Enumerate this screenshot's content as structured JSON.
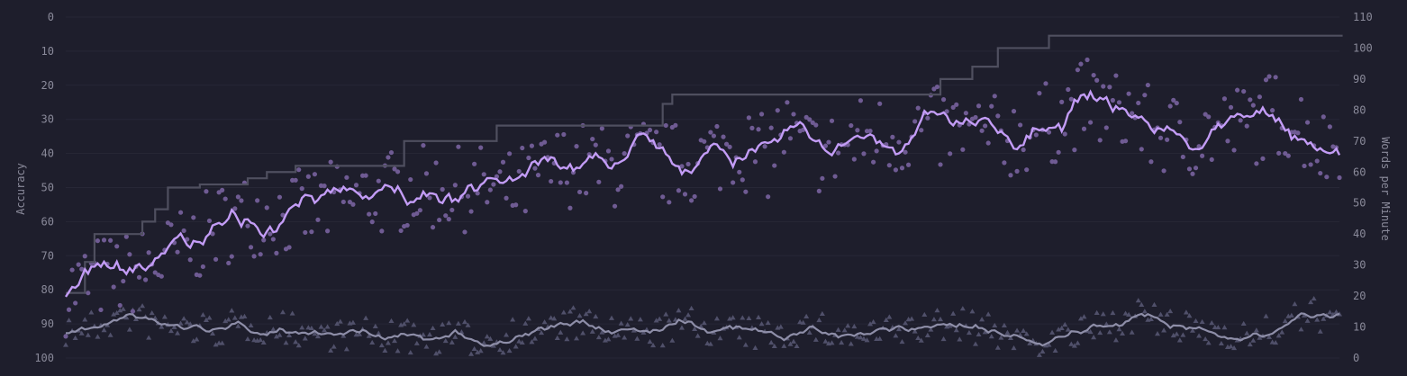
{
  "chart_data": {
    "type": "line",
    "title": "",
    "ylabel_left": "Accuracy",
    "ylabel_right": "Words per Minute",
    "left_axis": {
      "min": 0,
      "max": 100,
      "inverted": true,
      "ticks": [
        0,
        10,
        20,
        30,
        40,
        50,
        60,
        70,
        80,
        90,
        100
      ]
    },
    "right_axis": {
      "min": 0,
      "max": 110,
      "ticks": [
        0,
        10,
        20,
        30,
        40,
        50,
        60,
        70,
        80,
        90,
        100,
        110
      ]
    },
    "x_count": 400,
    "grid": true,
    "legend": "none",
    "colors": {
      "background": "#1e1e2c",
      "grid": "#272736",
      "wpm_line": "#c39cf6",
      "wpm_points": "#6f5b93",
      "acc_line": "#8e8ea8",
      "acc_points": "#50506a",
      "pb_line": "#4f4f5f"
    },
    "series": [
      {
        "name": "wpm",
        "kind": "line+points",
        "axis": "right",
        "anchors": [
          [
            0,
            21
          ],
          [
            10,
            26
          ],
          [
            20,
            27
          ],
          [
            30,
            31
          ],
          [
            40,
            37
          ],
          [
            50,
            44
          ],
          [
            60,
            47
          ],
          [
            70,
            46
          ],
          [
            80,
            49
          ],
          [
            90,
            51
          ],
          [
            100,
            53
          ],
          [
            110,
            55
          ],
          [
            120,
            54
          ],
          [
            130,
            55
          ],
          [
            140,
            53
          ],
          [
            150,
            59
          ],
          [
            160,
            63
          ],
          [
            170,
            61
          ],
          [
            180,
            64
          ],
          [
            190,
            62
          ],
          [
            200,
            64
          ],
          [
            210,
            69
          ],
          [
            215,
            67
          ],
          [
            220,
            64
          ],
          [
            225,
            74
          ],
          [
            230,
            68
          ],
          [
            240,
            66
          ],
          [
            250,
            71
          ],
          [
            260,
            72
          ],
          [
            270,
            74
          ],
          [
            280,
            73
          ],
          [
            290,
            71
          ],
          [
            300,
            72
          ],
          [
            310,
            76
          ],
          [
            320,
            83
          ],
          [
            330,
            79
          ],
          [
            335,
            80
          ],
          [
            340,
            74
          ],
          [
            350,
            71
          ],
          [
            360,
            73
          ],
          [
            370,
            75
          ],
          [
            380,
            79
          ],
          [
            390,
            74
          ],
          [
            395,
            67
          ],
          [
            400,
            72
          ]
        ]
      },
      {
        "name": "accuracy",
        "kind": "line+points",
        "axis": "left",
        "anchors": [
          [
            0,
            92
          ],
          [
            10,
            91
          ],
          [
            20,
            87.5
          ],
          [
            30,
            90.5
          ],
          [
            40,
            91
          ],
          [
            50,
            92
          ],
          [
            60,
            90.5
          ],
          [
            70,
            91
          ],
          [
            80,
            92
          ],
          [
            90,
            93
          ],
          [
            100,
            93
          ],
          [
            110,
            94
          ],
          [
            120,
            94
          ],
          [
            130,
            94
          ],
          [
            140,
            95
          ],
          [
            150,
            93
          ],
          [
            160,
            92
          ],
          [
            170,
            90
          ],
          [
            180,
            92
          ],
          [
            190,
            93
          ],
          [
            200,
            92
          ],
          [
            210,
            90
          ],
          [
            220,
            92
          ],
          [
            230,
            93
          ],
          [
            240,
            93
          ],
          [
            250,
            91
          ],
          [
            260,
            93
          ],
          [
            270,
            93.5
          ],
          [
            280,
            92
          ],
          [
            290,
            91
          ],
          [
            300,
            90
          ],
          [
            310,
            92
          ],
          [
            320,
            94
          ],
          [
            330,
            95
          ],
          [
            340,
            93
          ],
          [
            350,
            91
          ],
          [
            360,
            87
          ],
          [
            370,
            91
          ],
          [
            380,
            92
          ],
          [
            390,
            92
          ],
          [
            400,
            94
          ],
          [
            410,
            90
          ],
          [
            420,
            87
          ],
          [
            428,
            90
          ]
        ]
      },
      {
        "name": "pb",
        "kind": "step",
        "axis": "right",
        "steps": [
          [
            0,
            21
          ],
          [
            6,
            31
          ],
          [
            9,
            40
          ],
          [
            24,
            44
          ],
          [
            28,
            48
          ],
          [
            32,
            55
          ],
          [
            42,
            56
          ],
          [
            57,
            58
          ],
          [
            63,
            60
          ],
          [
            72,
            62
          ],
          [
            106,
            70
          ],
          [
            135,
            75
          ],
          [
            187,
            82
          ],
          [
            190,
            85
          ],
          [
            274,
            90
          ],
          [
            284,
            94
          ],
          [
            292,
            100
          ],
          [
            308,
            104
          ],
          [
            400,
            104
          ]
        ]
      }
    ]
  }
}
